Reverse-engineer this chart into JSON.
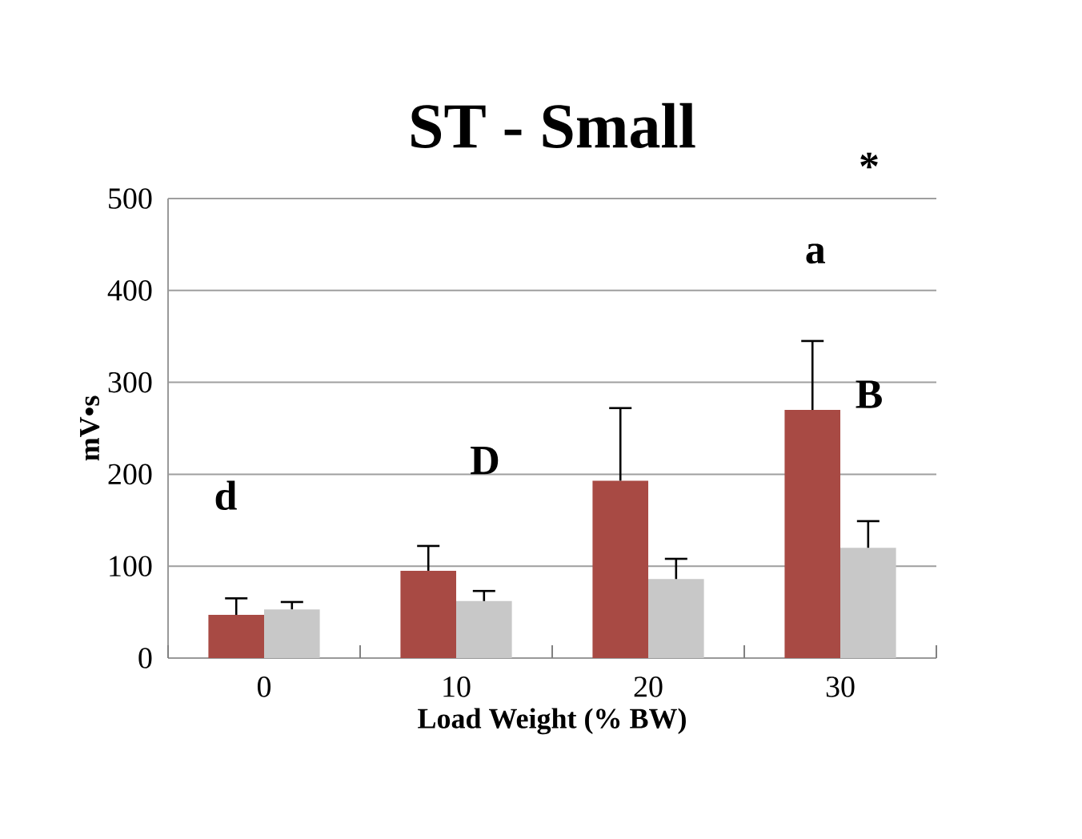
{
  "chart_data": {
    "type": "bar",
    "title": "ST - Small",
    "xlabel": "Load Weight (% BW)",
    "ylabel": "mV•s",
    "categories": [
      "0",
      "10",
      "20",
      "30"
    ],
    "series": [
      {
        "color": "#a84a44",
        "values": [
          47,
          95,
          193,
          270
        ],
        "errors": [
          [
            47,
            65
          ],
          [
            95,
            122
          ],
          [
            193,
            272
          ],
          [
            270,
            345
          ]
        ]
      },
      {
        "color": "#c8c8c8",
        "values": [
          53,
          62,
          86,
          120
        ],
        "errors": [
          [
            53,
            61
          ],
          [
            62,
            73
          ],
          [
            86,
            108
          ],
          [
            120,
            149
          ]
        ]
      }
    ],
    "ylim": [
      0,
      500
    ],
    "yticks": [
      0,
      100,
      200,
      300,
      400,
      500
    ],
    "grid": "y",
    "annotations": [
      "d",
      "D",
      "a",
      "B",
      "*"
    ]
  }
}
